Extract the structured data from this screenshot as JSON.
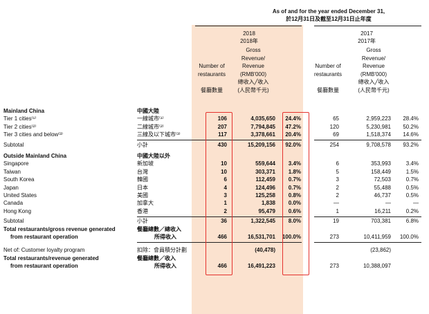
{
  "header": {
    "period_en": "As of and for the year ended December 31,",
    "period_zh": "於12月31日及截至12月31日止年度",
    "y2018": {
      "year": "2018",
      "year_zh": "2018年",
      "count_col": [
        "Number of",
        "restaurants",
        "",
        "餐廳數量"
      ],
      "rev_col": [
        "Gross",
        "Revenue/",
        "Revenue",
        "(RMB'000)",
        "總收入╱收入",
        "(人民幣千元)"
      ]
    },
    "y2017": {
      "year": "2017",
      "year_zh": "2017年",
      "count_col": [
        "Number of",
        "restaurants",
        "",
        "餐廳數量"
      ],
      "rev_col": [
        "Gross",
        "Revenue/",
        "Revenue",
        "(RMB'000)",
        "總收入╱收入",
        "(人民幣千元)"
      ]
    }
  },
  "rows": [
    {
      "en": "Mainland China",
      "zh": "中國大陸",
      "bold": true,
      "section": true
    },
    {
      "en": "Tier 1 cities⁽¹⁾",
      "zh": "一線城市⁽¹⁾",
      "n18": "106",
      "r18": "4,035,650",
      "p18": "24.4%",
      "n17": "65",
      "r17": "2,959,223",
      "p17": "28.4%"
    },
    {
      "en": "Tier 2 cities⁽²⁾",
      "zh": "二線城市⁽²⁾",
      "n18": "207",
      "r18": "7,794,845",
      "p18": "47.2%",
      "n17": "120",
      "r17": "5,230,981",
      "p17": "50.2%"
    },
    {
      "en": "Tier 3 cities and below⁽³⁾",
      "zh": "三線及以下城市⁽³⁾",
      "n18": "117",
      "r18": "3,378,661",
      "p18": "20.4%",
      "n17": "69",
      "r17": "1,518,374",
      "p17": "14.6%",
      "rule": true
    },
    {
      "en": "Subtotal",
      "zh": "小計",
      "n18": "430",
      "r18": "15,209,156",
      "p18": "92.0%",
      "n17": "254",
      "r17": "9,708,578",
      "p17": "93.2%",
      "gap": true
    },
    {
      "en": "Outside Mainland China",
      "zh": "中國大陸以外",
      "bold": true,
      "section": true
    },
    {
      "en": "Singapore",
      "zh": "新加坡",
      "n18": "10",
      "r18": "559,644",
      "p18": "3.4%",
      "n17": "6",
      "r17": "353,993",
      "p17": "3.4%"
    },
    {
      "en": "Taiwan",
      "zh": "台灣",
      "n18": "10",
      "r18": "303,371",
      "p18": "1.8%",
      "n17": "5",
      "r17": "158,449",
      "p17": "1.5%"
    },
    {
      "en": "South Korea",
      "zh": "韓國",
      "n18": "6",
      "r18": "112,459",
      "p18": "0.7%",
      "n17": "3",
      "r17": "72,503",
      "p17": "0.7%"
    },
    {
      "en": "Japan",
      "zh": "日本",
      "n18": "4",
      "r18": "124,496",
      "p18": "0.7%",
      "n17": "2",
      "r17": "55,488",
      "p17": "0.5%"
    },
    {
      "en": "United States",
      "zh": "美國",
      "n18": "3",
      "r18": "125,258",
      "p18": "0.8%",
      "n17": "2",
      "r17": "46,737",
      "p17": "0.5%"
    },
    {
      "en": "Canada",
      "zh": "加拿大",
      "n18": "1",
      "r18": "1,838",
      "p18": "0.0%",
      "n17": "—",
      "r17": "—",
      "p17": "—"
    },
    {
      "en": "Hong Kong",
      "zh": "香港",
      "n18": "2",
      "r18": "95,479",
      "p18": "0.6%",
      "n17": "1",
      "r17": "16,211",
      "p17": "0.2%",
      "rule": true
    },
    {
      "en": "Subtotal",
      "zh": "小計",
      "n18": "36",
      "r18": "1,322,545",
      "p18": "8.0%",
      "n17": "19",
      "r17": "703,381",
      "p17": "6.8%"
    },
    {
      "en": "Total restaurants/gross revenue generated",
      "zh": "餐廳總數／總收入",
      "bold": true
    },
    {
      "en": "from restaurant operation",
      "zh": "所得收入",
      "bold": true,
      "indent": true,
      "n18": "466",
      "r18": "16,531,701",
      "p18": "100.0%",
      "n17": "273",
      "r17": "10,411,959",
      "p17": "100.0%",
      "rule": true,
      "gap": true
    },
    {
      "en": "Net of: Customer loyalty program",
      "zh": "扣除：會員積分計劃",
      "r18": "(40,478)",
      "r17": "(23,862)"
    },
    {
      "en": "Total restaurants/revenue generated",
      "zh": "餐廳總數／收入",
      "bold": true
    },
    {
      "en": "from restaurant operation",
      "zh": "所得收入",
      "bold": true,
      "indent": true,
      "n18": "466",
      "r18": "16,491,223",
      "n17": "273",
      "r17": "10,388,097"
    }
  ],
  "colors": {
    "highlight_column": "#fbe2cf",
    "emphasis_box": "#e5322d"
  }
}
